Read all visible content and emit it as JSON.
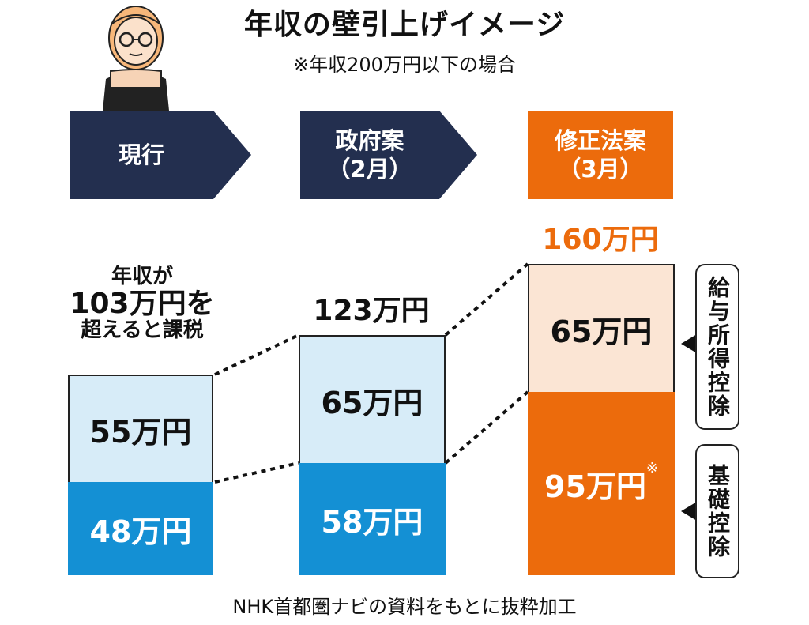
{
  "title": "年収の壁引上げイメージ",
  "subtitle": "※年収200万円以下の場合",
  "stages": [
    {
      "label_line1": "現行",
      "label_line2": ""
    },
    {
      "label_line1": "政府案",
      "label_line2": "（2月）"
    },
    {
      "label_line1": "修正法案",
      "label_line2": "（3月）"
    }
  ],
  "colors": {
    "navy": "#232f4f",
    "orange": "#ec6b0c",
    "light_blue": "#d7ecf8",
    "blue": "#1490d4",
    "peach": "#fbe5d4"
  },
  "bar1_caption": [
    "年収が",
    "103万円を",
    "超えると課税"
  ],
  "bar2_caption": "123万円",
  "bar3_caption": "160万円",
  "label_kyuyo": "給与所得控除",
  "label_kiso": "基礎控除",
  "note_mark": "※",
  "source": "NHK首都圏ナビの資料をもとに抜粋加工",
  "chart_data": {
    "type": "bar",
    "stacked": true,
    "categories": [
      "現行",
      "政府案（2月）",
      "修正法案（3月）"
    ],
    "totals": [
      103,
      123,
      160
    ],
    "unit": "万円",
    "series": [
      {
        "name": "基礎控除",
        "values": [
          48,
          58,
          95
        ],
        "labels": [
          "48万円",
          "58万円",
          "95万円"
        ]
      },
      {
        "name": "給与所得控除",
        "values": [
          55,
          65,
          65
        ],
        "labels": [
          "55万円",
          "65万円",
          "65万円"
        ]
      }
    ]
  }
}
